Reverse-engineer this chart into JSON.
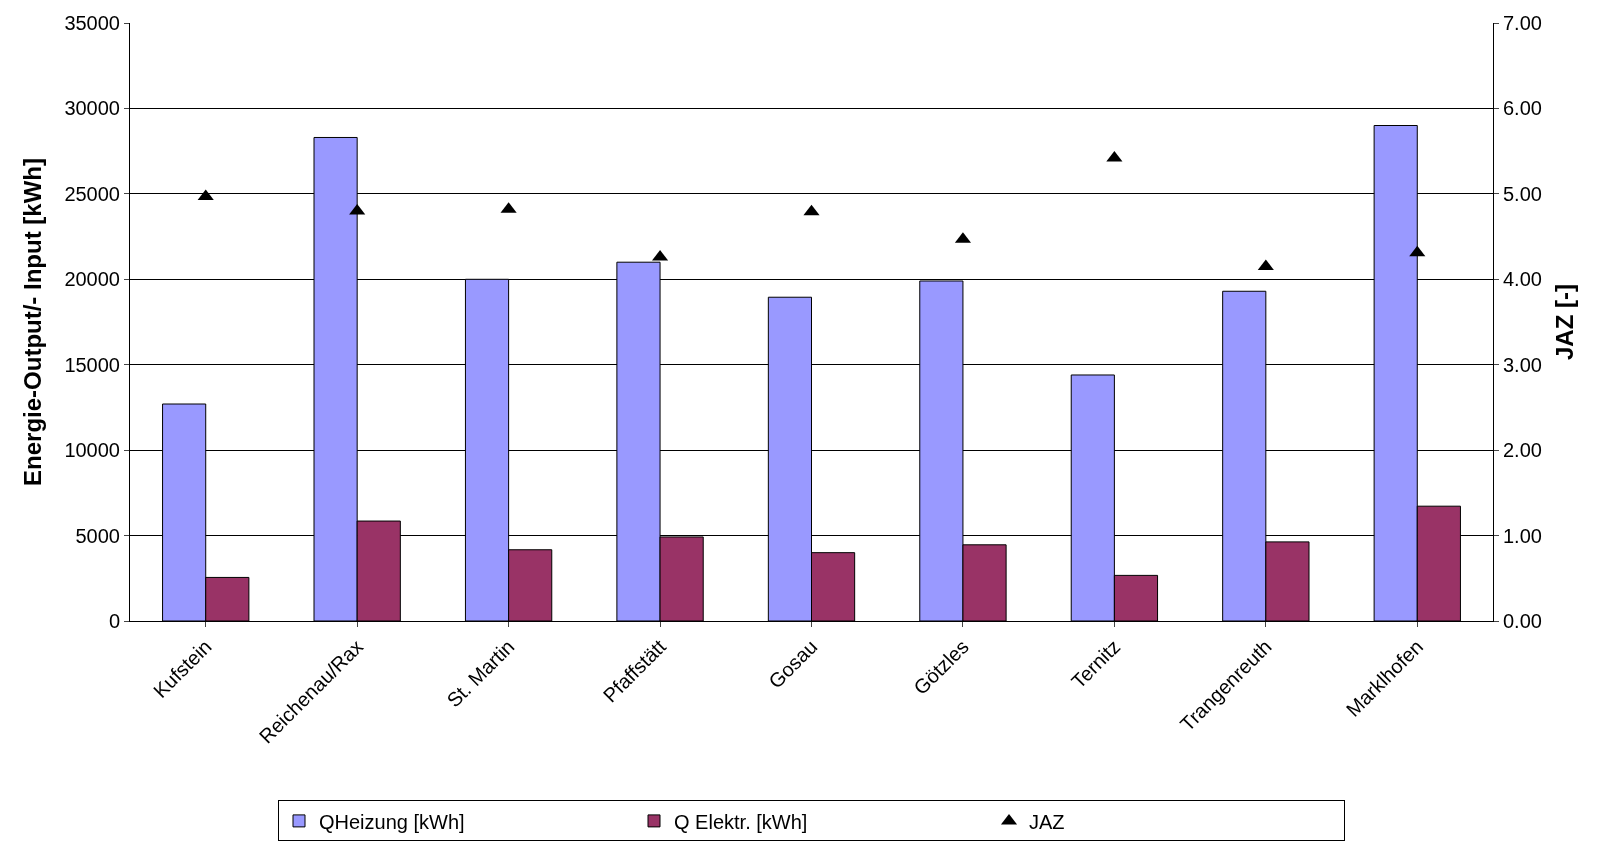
{
  "chart_data": {
    "type": "bar",
    "ylabel": "Energie-Output/- Input [kWh]",
    "y2label": "JAZ [-]",
    "categories": [
      "Kufstein",
      "Reichenau/Rax",
      "St. Martin",
      "Pfaffstätt",
      "Gosau",
      "Götzles",
      "Ternitz",
      "Trangenreuth",
      "Marklhofen"
    ],
    "series": [
      {
        "name": "QHeizung [kWh]",
        "color": "#9999ff",
        "values": [
          12700,
          28300,
          20000,
          21000,
          18950,
          19900,
          14400,
          19300,
          29000
        ]
      },
      {
        "name": "Q Elektr. [kWh]",
        "color": "#993366",
        "values": [
          2550,
          5850,
          4170,
          4920,
          4000,
          4460,
          2670,
          4630,
          6720
        ]
      },
      {
        "name": "JAZ",
        "color": "#000000",
        "type": "scatter",
        "axis": "y2",
        "marker": "triangle",
        "values": [
          4.97,
          4.8,
          4.82,
          4.26,
          4.79,
          4.47,
          5.42,
          4.15,
          4.31
        ]
      }
    ],
    "ylim": [
      0,
      35000
    ],
    "yticks": [
      0,
      5000,
      10000,
      15000,
      20000,
      25000,
      30000,
      35000
    ],
    "y2lim": [
      0,
      7
    ],
    "y2ticks": [
      {
        "value": 0,
        "label": "0.00"
      },
      {
        "value": 1,
        "label": "1.00"
      },
      {
        "value": 2,
        "label": "2.00"
      },
      {
        "value": 3,
        "label": "3.00"
      },
      {
        "value": 4,
        "label": "4.00"
      },
      {
        "value": 5,
        "label": "5.00"
      },
      {
        "value": 6,
        "label": "6.00"
      },
      {
        "value": 7,
        "label": "7.00"
      }
    ],
    "grid": "y",
    "legend": "bottom"
  }
}
